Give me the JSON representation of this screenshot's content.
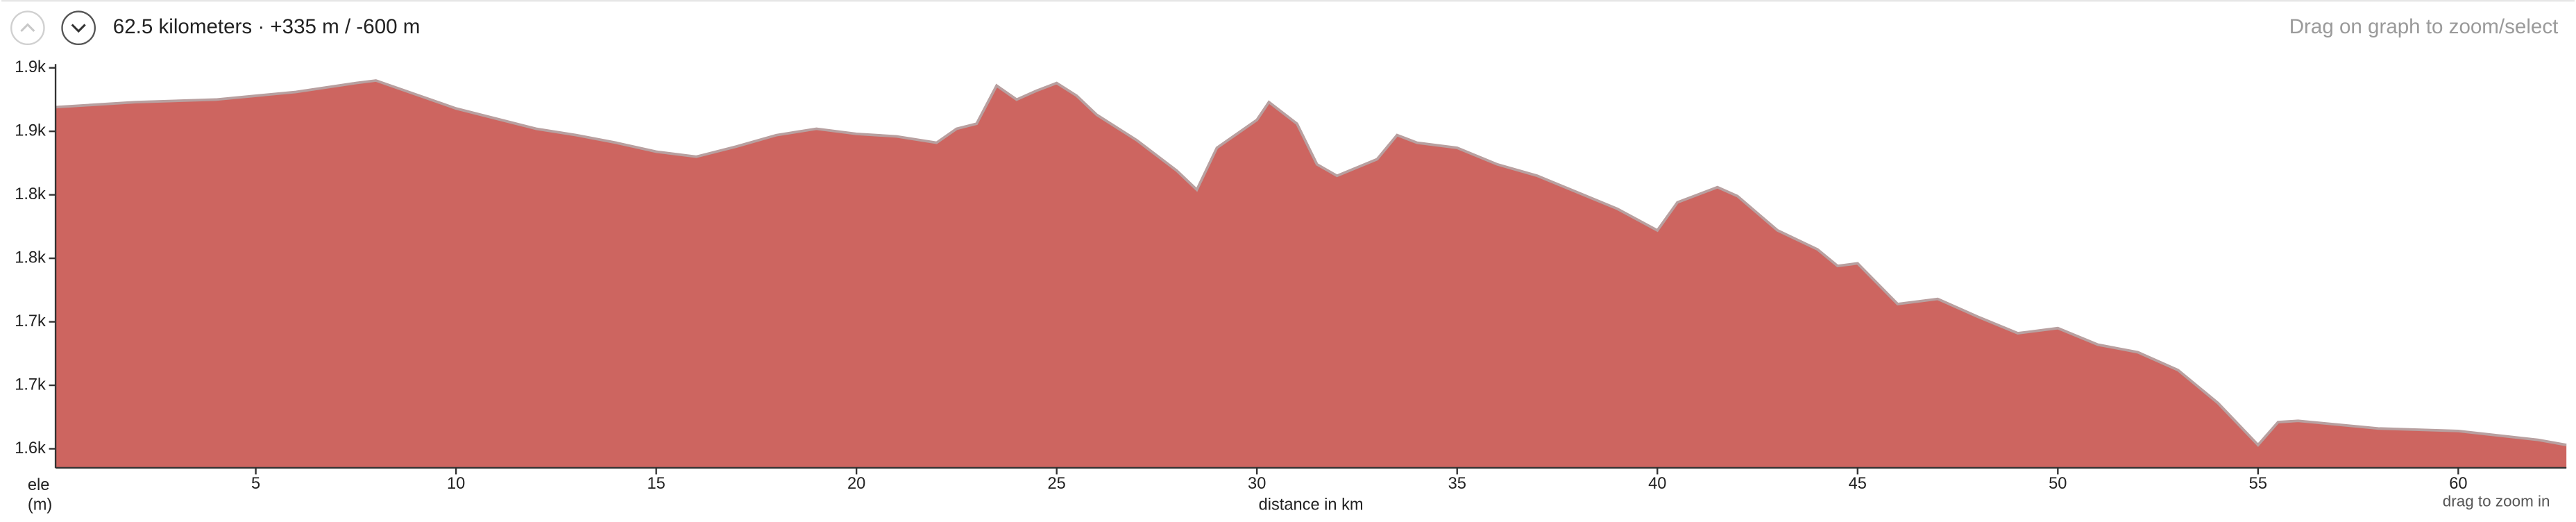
{
  "chart_data": {
    "type": "area",
    "title": "62.5 kilometers · +335 m / -600 m",
    "annotations": [
      "Drag on graph to zoom/select",
      "drag to zoom in"
    ],
    "xlabel": "distance in km",
    "ylabel": [
      "ele",
      "(m)"
    ],
    "color": "#cd6560",
    "xlim": [
      0,
      62.7
    ],
    "xticks": [
      5,
      10,
      15,
      20,
      25,
      30,
      35,
      40,
      45,
      50,
      55,
      60
    ],
    "ylim": [
      1635,
      1953
    ],
    "yticks": [
      {
        "value": 1650,
        "label": "1.6k"
      },
      {
        "value": 1700,
        "label": "1.7k"
      },
      {
        "value": 1750,
        "label": "1.7k"
      },
      {
        "value": 1800,
        "label": "1.8k"
      },
      {
        "value": 1850,
        "label": "1.8k"
      },
      {
        "value": 1900,
        "label": "1.9k"
      },
      {
        "value": 1950,
        "label": "1.9k"
      }
    ],
    "x": [
      0,
      2,
      4,
      6,
      7.5,
      8,
      9,
      10,
      11,
      12,
      13,
      14,
      15,
      16,
      17,
      18,
      19,
      20,
      21,
      22,
      22.5,
      23,
      23.5,
      24,
      24.5,
      25,
      25.5,
      26,
      27,
      28,
      28.5,
      29,
      30,
      30.3,
      31,
      31.5,
      32,
      33,
      33.5,
      34,
      35,
      36,
      37,
      38,
      39,
      40,
      40.5,
      41,
      41.5,
      42,
      43,
      44,
      44.5,
      45,
      46,
      47,
      48,
      49,
      50,
      51,
      52,
      53,
      54,
      55,
      55.5,
      56,
      58,
      60,
      62,
      62.7
    ],
    "y": [
      1919,
      1923,
      1925,
      1931,
      1938,
      1940,
      1929,
      1918,
      1910,
      1902,
      1897,
      1891,
      1884,
      1880,
      1888,
      1897,
      1902,
      1898,
      1896,
      1891,
      1902,
      1906,
      1936,
      1925,
      1932,
      1938,
      1928,
      1913,
      1893,
      1869,
      1854,
      1887,
      1909,
      1923,
      1906,
      1874,
      1865,
      1878,
      1897,
      1891,
      1887,
      1874,
      1865,
      1852,
      1839,
      1822,
      1844,
      1850,
      1856,
      1849,
      1822,
      1807,
      1794,
      1796,
      1764,
      1768,
      1754,
      1741,
      1745,
      1732,
      1726,
      1712,
      1686,
      1653,
      1671,
      1672,
      1666,
      1664,
      1657,
      1653
    ]
  }
}
